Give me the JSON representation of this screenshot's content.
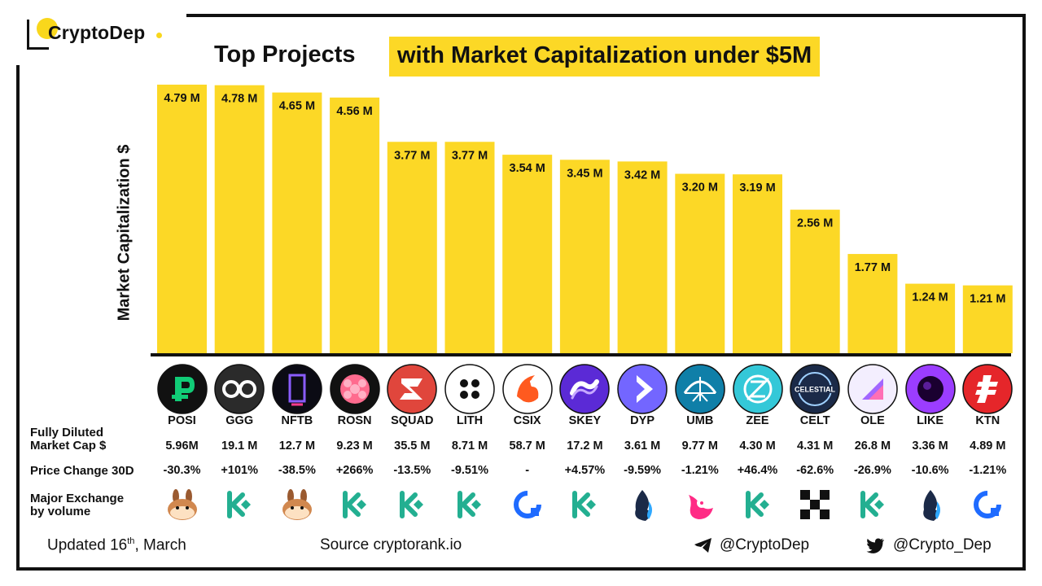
{
  "brand": {
    "name": "CryptoDep"
  },
  "title": {
    "left": "Top Projects",
    "highlight": "with Market Capitalization under $5M"
  },
  "colors": {
    "bar": "#fcd826",
    "accent": "#f9d71c",
    "ink": "#111111"
  },
  "chart_data": {
    "type": "bar",
    "ylabel": "Market Capitalization  $",
    "unit": "M",
    "ylim": [
      0,
      4.79
    ],
    "categories": [
      "POSI",
      "GGG",
      "NFTB",
      "ROSN",
      "SQUAD",
      "LITH",
      "CSIX",
      "SKEY",
      "DYP",
      "UMB",
      "ZEE",
      "CELT",
      "OLE",
      "LIKE",
      "KTN"
    ],
    "values": [
      4.79,
      4.78,
      4.65,
      4.56,
      3.77,
      3.77,
      3.54,
      3.45,
      3.42,
      3.2,
      3.19,
      2.56,
      1.77,
      1.24,
      1.21
    ],
    "labels": [
      "4.79 M",
      "4.78 M",
      "4.65 M",
      "4.56 M",
      "3.77 M",
      "3.77 M",
      "3.54 M",
      "3.45 M",
      "3.42 M",
      "3.20 M",
      "3.19 M",
      "2.56 M",
      "1.77 M",
      "1.24 M",
      "1.21 M"
    ]
  },
  "rows": {
    "fdv_label": [
      "Fully Diluted",
      "Market Cap $"
    ],
    "price_label": "Price Change 30D",
    "exchange_label": [
      "Major Exchange",
      "by volume"
    ]
  },
  "projects": [
    {
      "symbol": "POSI",
      "fdv": "5.96M",
      "change": "-30.3%",
      "exchange_icon": "pancakeswap-icon",
      "logo_icon": "posi-logo-icon",
      "logo_color": "#11cc77",
      "logo_bg": "#111111"
    },
    {
      "symbol": "GGG",
      "fdv": "19.1 M",
      "change": "+101%",
      "exchange_icon": "kucoin-icon",
      "logo_icon": "ggg-logo-icon",
      "logo_color": "#ffffff",
      "logo_bg": "#2b2b2b"
    },
    {
      "symbol": "NFTB",
      "fdv": "12.7 M",
      "change": "-38.5%",
      "exchange_icon": "pancakeswap-icon",
      "logo_icon": "nftb-logo-icon",
      "logo_color": "#8a5cff",
      "logo_bg": "#0b0b14"
    },
    {
      "symbol": "ROSN",
      "fdv": "9.23 M",
      "change": "+266%",
      "exchange_icon": "kucoin-icon",
      "logo_icon": "rosn-logo-icon",
      "logo_color": "#ff6b8e",
      "logo_bg": "#111111"
    },
    {
      "symbol": "SQUAD",
      "fdv": "35.5 M",
      "change": "-13.5%",
      "exchange_icon": "kucoin-icon",
      "logo_icon": "squad-logo-icon",
      "logo_color": "#ffffff",
      "logo_bg": "#e0463c"
    },
    {
      "symbol": "LITH",
      "fdv": "8.71 M",
      "change": "-9.51%",
      "exchange_icon": "kucoin-icon",
      "logo_icon": "lith-logo-icon",
      "logo_color": "#111111",
      "logo_bg": "#ffffff"
    },
    {
      "symbol": "CSIX",
      "fdv": "58.7 M",
      "change": "-",
      "exchange_icon": "okx-icon",
      "logo_icon": "csix-logo-icon",
      "logo_color": "#ff5a1f",
      "logo_bg": "#ffffff"
    },
    {
      "symbol": "SKEY",
      "fdv": "17.2 M",
      "change": "+4.57%",
      "exchange_icon": "kucoin-icon",
      "logo_icon": "skey-logo-icon",
      "logo_color": "#ffffff",
      "logo_bg": "#5b2ad6"
    },
    {
      "symbol": "DYP",
      "fdv": "3.61 M",
      "change": "-9.59%",
      "exchange_icon": "huobi-icon",
      "logo_icon": "dyp-logo-icon",
      "logo_color": "#ffffff",
      "logo_bg": "#7366ff"
    },
    {
      "symbol": "UMB",
      "fdv": "9.77 M",
      "change": "-1.21%",
      "exchange_icon": "uniswap-icon",
      "logo_icon": "umb-logo-icon",
      "logo_color": "#ffffff",
      "logo_bg": "#0f7fa8"
    },
    {
      "symbol": "ZEE",
      "fdv": "4.30 M",
      "change": "+46.4%",
      "exchange_icon": "kucoin-icon",
      "logo_icon": "zee-logo-icon",
      "logo_color": "#ffffff",
      "logo_bg": "#34c8d8"
    },
    {
      "symbol": "CELT",
      "fdv": "4.31 M",
      "change": "-62.6%",
      "exchange_icon": "gate-icon",
      "logo_icon": "celt-logo-icon",
      "logo_color": "#ffffff",
      "logo_bg": "#1b2a48"
    },
    {
      "symbol": "OLE",
      "fdv": "26.8 M",
      "change": "-26.9%",
      "exchange_icon": "kucoin-icon",
      "logo_icon": "ole-logo-icon",
      "logo_color": "#a266ff",
      "logo_bg": "#f3eefe"
    },
    {
      "symbol": "LIKE",
      "fdv": "3.36 M",
      "change": "-10.6%",
      "exchange_icon": "huobi-icon",
      "logo_icon": "like-logo-icon",
      "logo_color": "#1a0030",
      "logo_bg": "#9b3dff"
    },
    {
      "symbol": "KTN",
      "fdv": "4.89 M",
      "change": "-1.21%",
      "exchange_icon": "okx-icon",
      "logo_icon": "ktn-logo-icon",
      "logo_color": "#ffffff",
      "logo_bg": "#e5262a"
    }
  ],
  "footer": {
    "updated_prefix": "Updated 16",
    "updated_sup": "th",
    "updated_suffix": ", March",
    "source": "Source  cryptorank.io",
    "telegram": "@CryptoDep",
    "twitter": "@Crypto_Dep"
  }
}
